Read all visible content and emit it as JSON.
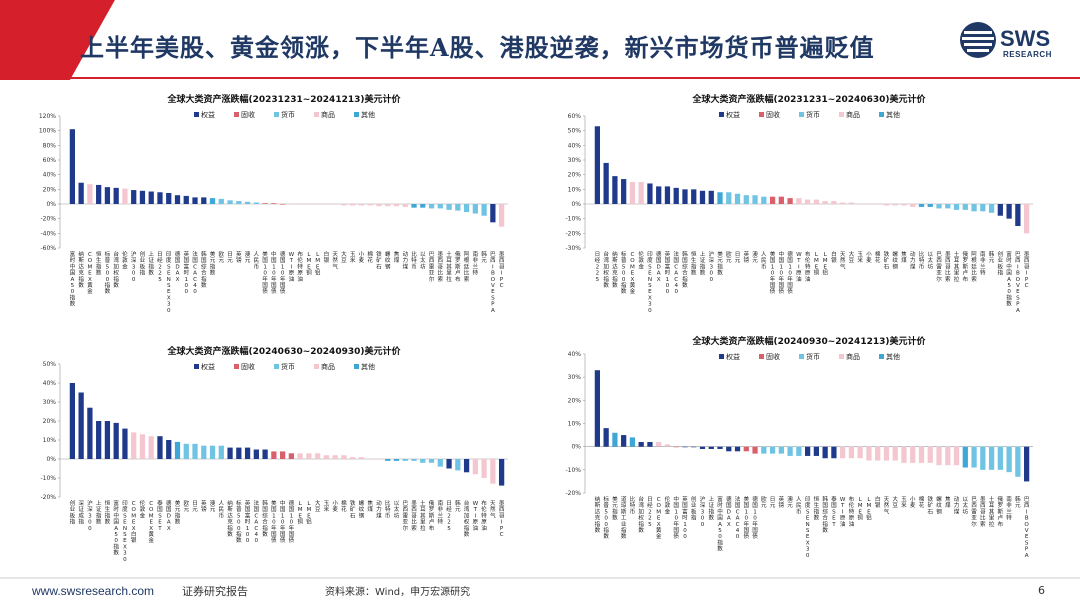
{
  "header": {
    "title": "上半年美股、黄金领涨，下半年A股、港股逆袭，新兴市场货币普遍贬值",
    "logo_text": "SWS",
    "logo_sub": "RESEARCH"
  },
  "footer": {
    "website": "www.swsresearch.com",
    "report_type": "证券研究报告",
    "source": "资料来源：Wind，申万宏源研究",
    "page_number": "6"
  },
  "colors": {
    "equity": "#1f3a8a",
    "bond": "#d9606b",
    "fx": "#6fc4e4",
    "commodity": "#f4c7d0",
    "other": "#3fa7d6"
  },
  "legend": [
    {
      "key": "equity",
      "label": "权益"
    },
    {
      "key": "bond",
      "label": "固收"
    },
    {
      "key": "fx",
      "label": "货币"
    },
    {
      "key": "commodity",
      "label": "商品"
    },
    {
      "key": "other",
      "label": "其他"
    }
  ],
  "chart_data": [
    {
      "type": "bar",
      "title": "全球大类资产涨跌幅(20231231~20241213)美元计价",
      "ylim": [
        -60,
        120
      ],
      "yticks": [
        -60,
        -40,
        -20,
        0,
        20,
        40,
        60,
        80,
        100,
        120
      ],
      "ytick_labels": [
        "-60%",
        "-40%",
        "-20%",
        "0%",
        "20%",
        "40%",
        "60%",
        "80%",
        "100%",
        "120%"
      ],
      "categories": [
        "富时中国A50指数",
        "纳斯达克指数",
        "COMEX黄金",
        "恒生指数",
        "标普500指数",
        "台湾加权指数",
        "伦敦金",
        "沪深300",
        "创业板指",
        "上证指数",
        "日经225",
        "印度SENSEX30",
        "德国DAX",
        "英国富时100",
        "法国CAC40",
        "韩国综合指数",
        "美元指数",
        "欧元",
        "日元",
        "英镑",
        "澳元",
        "人民币",
        "美国10年国债",
        "中国10年国债",
        "德国10年国债",
        "WTI原油",
        "布伦特原油",
        "LME铜",
        "LME铝",
        "白银",
        "天然气",
        "大豆",
        "玉米",
        "小麦",
        "棉花",
        "铁矿石",
        "螺纹钢",
        "焦煤",
        "动力煤",
        "比特币",
        "以太坊",
        "巴西雷亚尔",
        "墨西哥比索",
        "土耳其里拉",
        "俄罗斯卢布",
        "阿根廷比索",
        "南非兰特",
        "韩元",
        "巴西IBOVESPA",
        "墨西哥IPC"
      ],
      "values": [
        102,
        29,
        27,
        26,
        23,
        22,
        21,
        19,
        18,
        17,
        16,
        15,
        12,
        11,
        9,
        9,
        8,
        7,
        5,
        4,
        3,
        2,
        1,
        1,
        0,
        0,
        -1,
        -1,
        -1,
        -1,
        -1,
        -2,
        -2,
        -2,
        -2,
        -3,
        -3,
        -3,
        -4,
        -5,
        -5,
        -6,
        -6,
        -8,
        -9,
        -11,
        -13,
        -16,
        -25,
        -31
      ],
      "groups": [
        "equity",
        "equity",
        "commodity",
        "equity",
        "equity",
        "equity",
        "commodity",
        "equity",
        "equity",
        "equity",
        "equity",
        "equity",
        "equity",
        "equity",
        "equity",
        "equity",
        "other",
        "fx",
        "fx",
        "fx",
        "fx",
        "fx",
        "bond",
        "bond",
        "bond",
        "commodity",
        "commodity",
        "commodity",
        "commodity",
        "commodity",
        "commodity",
        "commodity",
        "commodity",
        "commodity",
        "commodity",
        "commodity",
        "commodity",
        "commodity",
        "commodity",
        "other",
        "other",
        "fx",
        "fx",
        "fx",
        "fx",
        "fx",
        "fx",
        "fx",
        "equity",
        "commodity"
      ]
    },
    {
      "type": "bar",
      "title": "全球大类资产涨跌幅(20231231~20240630)美元计价",
      "ylim": [
        -30,
        60
      ],
      "yticks": [
        -30,
        -20,
        -10,
        0,
        10,
        20,
        30,
        40,
        50,
        60
      ],
      "ytick_labels": [
        "-30%",
        "-20%",
        "-10%",
        "0%",
        "10%",
        "20%",
        "30%",
        "40%",
        "50%",
        "60%"
      ],
      "categories": [
        "日经225",
        "台湾加权指数",
        "纳斯达克指数",
        "标普500指数",
        "COMEX黄金",
        "伦敦金",
        "印度SENSEX30",
        "德国DAX",
        "英国富时100",
        "法国CAC40",
        "韩国综合指数",
        "恒生指数",
        "上证指数",
        "沪深300",
        "美元指数",
        "欧元",
        "日元",
        "英镑",
        "澳元",
        "人民币",
        "美国10年国债",
        "中国10年国债",
        "德国10年国债",
        "WTI原油",
        "布伦特原油",
        "LME铜",
        "LME铝",
        "白银",
        "天然气",
        "大豆",
        "玉米",
        "小麦",
        "棉花",
        "铁矿石",
        "螺纹钢",
        "焦煤",
        "动力煤",
        "比特币",
        "以太坊",
        "巴西雷亚尔",
        "墨西哥比索",
        "土耳其里拉",
        "俄罗斯卢布",
        "阿根廷比索",
        "南非兰特",
        "韩元",
        "创业板指",
        "富时中国A50指数",
        "巴西IBOVESPA",
        "墨西哥IPC"
      ],
      "values": [
        53,
        28,
        19,
        17,
        15,
        15,
        14,
        12,
        12,
        11,
        10,
        10,
        9,
        9,
        8,
        8,
        7,
        6,
        6,
        5,
        5,
        5,
        4,
        4,
        3,
        3,
        2,
        2,
        1,
        1,
        0,
        0,
        0,
        -1,
        -1,
        -1,
        -2,
        -2,
        -2,
        -3,
        -3,
        -4,
        -4,
        -5,
        -5,
        -6,
        -8,
        -10,
        -15,
        -20
      ],
      "groups": [
        "equity",
        "equity",
        "equity",
        "equity",
        "commodity",
        "commodity",
        "equity",
        "equity",
        "equity",
        "equity",
        "equity",
        "equity",
        "equity",
        "equity",
        "other",
        "fx",
        "fx",
        "fx",
        "fx",
        "fx",
        "bond",
        "bond",
        "bond",
        "commodity",
        "commodity",
        "commodity",
        "commodity",
        "commodity",
        "commodity",
        "commodity",
        "commodity",
        "commodity",
        "commodity",
        "commodity",
        "commodity",
        "commodity",
        "commodity",
        "other",
        "other",
        "fx",
        "fx",
        "fx",
        "fx",
        "fx",
        "fx",
        "fx",
        "equity",
        "equity",
        "equity",
        "commodity"
      ]
    },
    {
      "type": "bar",
      "title": "全球大类资产涨跌幅(20240630~20240930)美元计价",
      "ylim": [
        -20,
        50
      ],
      "yticks": [
        -20,
        -10,
        0,
        10,
        20,
        30,
        40,
        50
      ],
      "ytick_labels": [
        "-20%",
        "-10%",
        "0%",
        "10%",
        "20%",
        "30%",
        "40%",
        "50%"
      ],
      "categories": [
        "创业板指",
        "深证成指",
        "沪深300",
        "上证指数",
        "恒生指数",
        "富时中国A50指数",
        "印度SENSEX30",
        "COMEX白银",
        "伦敦金",
        "COMEX黄金",
        "泰国SET",
        "德国DAX",
        "美元指数",
        "欧元",
        "日元",
        "英镑",
        "澳元",
        "人民币",
        "纳斯达克指数",
        "标普500指数",
        "英国富时100",
        "法国CAC40",
        "韩国综合指数",
        "美国10年国债",
        "中国10年国债",
        "德国10年国债",
        "LME铜",
        "LME铝",
        "大豆",
        "玉米",
        "小麦",
        "棉花",
        "铁矿石",
        "螺纹钢",
        "焦煤",
        "动力煤",
        "比特币",
        "以太坊",
        "巴西雷亚尔",
        "墨西哥比索",
        "土耳其里拉",
        "俄罗斯卢布",
        "南非兰特",
        "日经225",
        "韩元",
        "台湾加权指数",
        "WTI原油",
        "布伦特原油",
        "天然气",
        "墨西哥IPC"
      ],
      "values": [
        40,
        35,
        27,
        20,
        20,
        19,
        16,
        14,
        13,
        12,
        12,
        10,
        9,
        8,
        8,
        7,
        7,
        7,
        6,
        6,
        6,
        5,
        5,
        4,
        4,
        3,
        3,
        3,
        3,
        2,
        2,
        2,
        1,
        1,
        0,
        0,
        -1,
        -1,
        -1,
        -1,
        -2,
        -2,
        -4,
        -5,
        -6,
        -7,
        -8,
        -10,
        -13,
        -14
      ],
      "groups": [
        "equity",
        "equity",
        "equity",
        "equity",
        "equity",
        "equity",
        "equity",
        "commodity",
        "commodity",
        "commodity",
        "equity",
        "equity",
        "other",
        "fx",
        "fx",
        "fx",
        "fx",
        "fx",
        "equity",
        "equity",
        "equity",
        "equity",
        "equity",
        "bond",
        "bond",
        "bond",
        "commodity",
        "commodity",
        "commodity",
        "commodity",
        "commodity",
        "commodity",
        "commodity",
        "commodity",
        "commodity",
        "commodity",
        "other",
        "other",
        "fx",
        "fx",
        "fx",
        "fx",
        "fx",
        "equity",
        "fx",
        "equity",
        "commodity",
        "commodity",
        "commodity",
        "equity"
      ]
    },
    {
      "type": "bar",
      "title": "全球大类资产涨跌幅(20240930~20241213)美元计价",
      "ylim": [
        -20,
        40
      ],
      "yticks": [
        -20,
        -10,
        0,
        10,
        20,
        30,
        40
      ],
      "ytick_labels": [
        "-20%",
        "-10%",
        "0%",
        "10%",
        "20%",
        "30%",
        "40%"
      ],
      "categories": [
        "纳斯达克指数",
        "标普500指数",
        "美元指数",
        "道琼斯工业指数",
        "比特币",
        "台湾加权指数",
        "日经225",
        "COMEX黄金",
        "伦敦金",
        "中国10年国债",
        "英国富时100",
        "创业板指",
        "沪深300",
        "上证指数",
        "富时中国A50指数",
        "德国DAX",
        "法国CAC40",
        "美国10年国债",
        "德国10年国债",
        "欧元",
        "日元",
        "英镑",
        "澳元",
        "人民币",
        "印度SENSEX30",
        "恒生指数",
        "韩国综合指数",
        "泰国SET",
        "WTI原油",
        "布伦特原油",
        "LME铜",
        "LME铝",
        "白银",
        "天然气",
        "大豆",
        "玉米",
        "小麦",
        "棉花",
        "铁矿石",
        "螺纹钢",
        "焦煤",
        "动力煤",
        "以太坊",
        "巴西雷亚尔",
        "墨西哥比索",
        "土耳其里拉",
        "俄罗斯卢布",
        "南非兰特",
        "韩元",
        "巴西IBOVESPA"
      ],
      "values": [
        33,
        8,
        6,
        5,
        4,
        2,
        2,
        2,
        1,
        0,
        0,
        0,
        -1,
        -1,
        -1,
        -2,
        -2,
        -2,
        -3,
        -3,
        -3,
        -3,
        -4,
        -4,
        -4,
        -4,
        -5,
        -5,
        -5,
        -5,
        -5,
        -6,
        -6,
        -6,
        -6,
        -7,
        -7,
        -7,
        -7,
        -8,
        -8,
        -8,
        -9,
        -9,
        -10,
        -10,
        -10,
        -11,
        -13,
        -15
      ],
      "groups": [
        "equity",
        "equity",
        "other",
        "equity",
        "other",
        "equity",
        "equity",
        "commodity",
        "commodity",
        "bond",
        "equity",
        "equity",
        "equity",
        "equity",
        "equity",
        "equity",
        "equity",
        "bond",
        "bond",
        "fx",
        "fx",
        "fx",
        "fx",
        "fx",
        "equity",
        "equity",
        "equity",
        "equity",
        "commodity",
        "commodity",
        "commodity",
        "commodity",
        "commodity",
        "commodity",
        "commodity",
        "commodity",
        "commodity",
        "commodity",
        "commodity",
        "commodity",
        "commodity",
        "commodity",
        "other",
        "fx",
        "fx",
        "fx",
        "fx",
        "fx",
        "fx",
        "equity"
      ]
    }
  ]
}
